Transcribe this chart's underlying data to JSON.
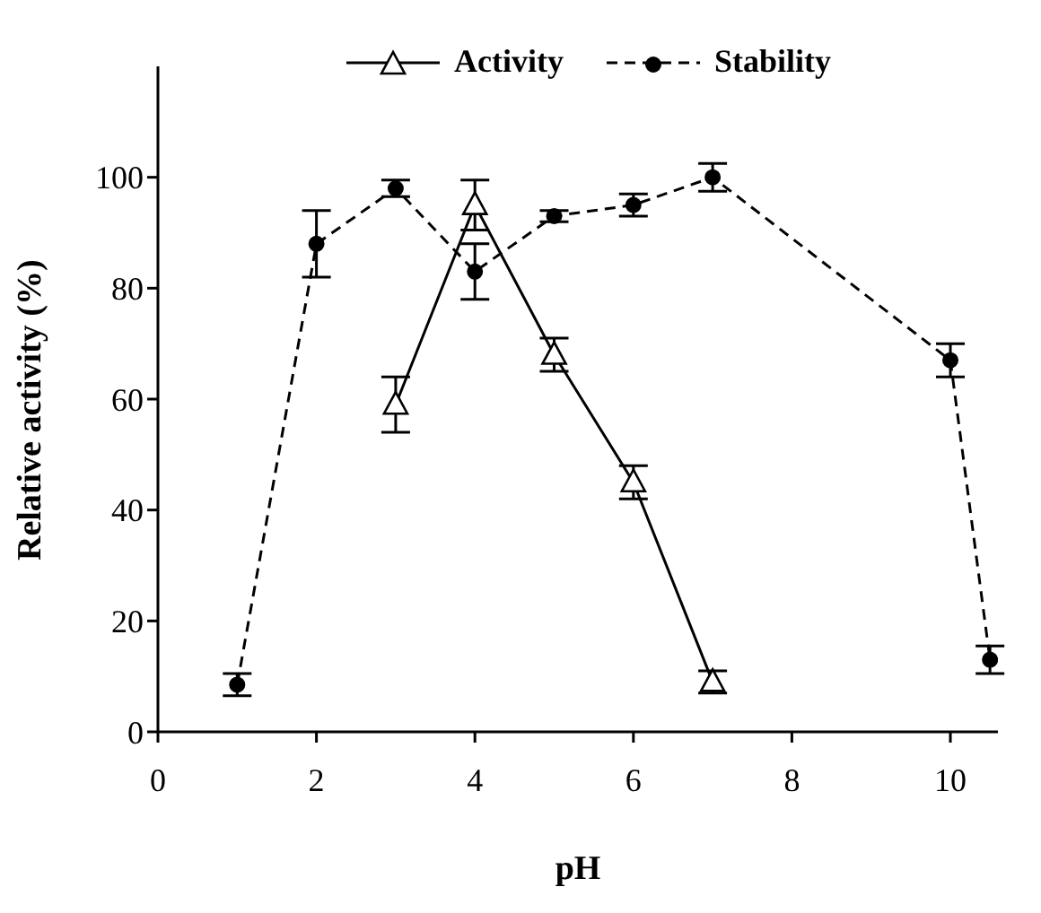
{
  "chart_data": {
    "type": "line",
    "xlabel": "pH",
    "ylabel": "Relative activity (%)",
    "xlim": [
      0,
      10.6
    ],
    "xticks": [
      0,
      2,
      4,
      6,
      8,
      10
    ],
    "ylim": [
      0,
      120
    ],
    "yticks": [
      0,
      20,
      40,
      60,
      80,
      100
    ],
    "grid": false,
    "legend": "top",
    "series": [
      {
        "name": "Activity",
        "color": "#000000",
        "marker": "triangle",
        "line_style": "solid",
        "x": [
          3,
          4,
          5,
          6,
          7
        ],
        "values": [
          59,
          95,
          68,
          45,
          9
        ],
        "errors": [
          5,
          4.5,
          3,
          3,
          2
        ]
      },
      {
        "name": "Stability",
        "color": "#000000",
        "marker": "circle",
        "line_style": "dashed",
        "x": [
          1,
          2,
          3,
          4,
          5,
          6,
          7,
          10,
          10.5
        ],
        "values": [
          8.5,
          88,
          98,
          83,
          93,
          95,
          100,
          67,
          13
        ],
        "errors": [
          2,
          6,
          1.5,
          5,
          1,
          2,
          2.5,
          3,
          2.5
        ]
      }
    ]
  }
}
